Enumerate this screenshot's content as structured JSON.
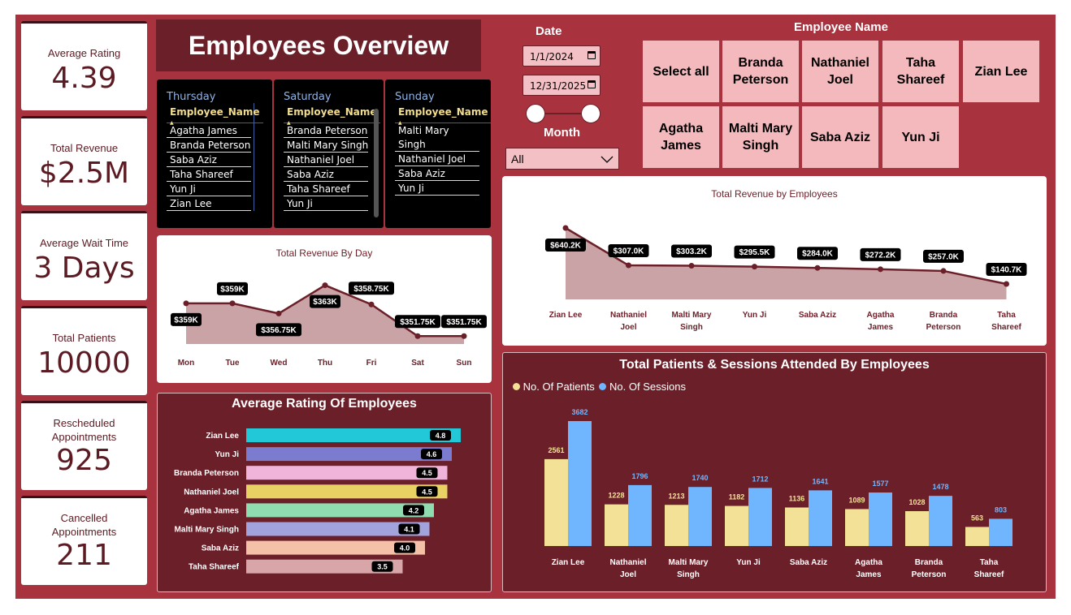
{
  "header": {
    "title": "Employees Overview"
  },
  "kpis": [
    {
      "label": "Average Rating",
      "value": "4.39"
    },
    {
      "label": "Total Revenue",
      "value": "$2.5M"
    },
    {
      "label": "Average Wait Time",
      "value": "3 Days"
    },
    {
      "label": "Total Patients",
      "value": "10000"
    },
    {
      "label": "Rescheduled Appointments",
      "value": "925"
    },
    {
      "label": "Cancelled Appointments",
      "value": "211"
    }
  ],
  "day_tables": {
    "column_header": "Employee_Name",
    "thursday": {
      "title": "Thursday",
      "rows": [
        "Agatha James",
        "Branda Peterson",
        "Saba Aziz",
        "Taha Shareef",
        "Yun Ji",
        "Zian Lee"
      ]
    },
    "saturday": {
      "title": "Saturday",
      "rows": [
        "Branda Peterson",
        "Malti Mary Singh",
        "Nathaniel Joel",
        "Saba Aziz",
        "Taha Shareef",
        "Yun Ji"
      ]
    },
    "sunday": {
      "title": "Sunday",
      "rows": [
        "Malti Mary",
        "Singh",
        "Nathaniel Joel",
        "Saba Aziz",
        "Yun Ji"
      ]
    }
  },
  "filters": {
    "date_label": "Date",
    "start_date": "1/1/2024",
    "end_date": "12/31/2025",
    "month_label": "Month",
    "month_value": "All",
    "employee_label": "Employee Name",
    "employee_tiles": [
      "Select all",
      "Branda Peterson",
      "Nathaniel Joel",
      "Taha Shareef",
      "Zian Lee",
      "Agatha James",
      "Malti Mary Singh",
      "Saba Aziz",
      "Yun Ji"
    ]
  },
  "colors": {
    "background": "#a8323d",
    "dark": "#6b1f28",
    "accent_line": "#6b1f28",
    "area_fill": "#c9a3a5",
    "patients": "#f2e196",
    "sessions": "#6fb6ff"
  },
  "chart_data": [
    {
      "type": "area",
      "title": "Total Revenue By Day",
      "categories": [
        "Mon",
        "Tue",
        "Wed",
        "Thu",
        "Fri",
        "Sat",
        "Sun"
      ],
      "values": [
        359,
        359,
        356.75,
        363,
        358.75,
        351.75,
        351.75
      ],
      "labels": [
        "$359K",
        "$359K",
        "$356.75K",
        "$363K",
        "$358.75K",
        "$351.75K",
        "$351.75K"
      ],
      "unit": "K"
    },
    {
      "type": "area",
      "title": "Total Revenue by Employees",
      "categories": [
        "Zian Lee",
        "Nathaniel Joel",
        "Malti Mary Singh",
        "Yun Ji",
        "Saba Aziz",
        "Agatha James",
        "Branda Peterson",
        "Taha Shareef"
      ],
      "values": [
        640.2,
        307.0,
        303.2,
        295.5,
        284.0,
        272.2,
        257.0,
        140.7
      ],
      "labels": [
        "$640.2K",
        "$307.0K",
        "$303.2K",
        "$295.5K",
        "$284.0K",
        "$272.2K",
        "$257.0K",
        "$140.7K"
      ],
      "unit": "K"
    },
    {
      "type": "bar",
      "orientation": "horizontal",
      "title": "Average Rating Of Employees",
      "categories": [
        "Zian Lee",
        "Yun Ji",
        "Branda Peterson",
        "Nathaniel Joel",
        "Agatha James",
        "Malti Mary Singh",
        "Saba Aziz",
        "Taha Shareef"
      ],
      "values": [
        4.8,
        4.6,
        4.5,
        4.5,
        4.2,
        4.1,
        4.0,
        3.5
      ],
      "labels": [
        "4.8",
        "4.6",
        "4.5",
        "4.5",
        "4.2",
        "4.1",
        "4.0",
        "3.5"
      ],
      "colors": [
        "#22c8d8",
        "#7b7bd0",
        "#f0b4da",
        "#e8d264",
        "#8fdcb0",
        "#a2a2dc",
        "#f4c0a8",
        "#d8a6a8"
      ]
    },
    {
      "type": "bar",
      "title": "Total Patients & Sessions Attended By Employees",
      "categories": [
        "Zian Lee",
        "Nathaniel Joel",
        "Malti Mary Singh",
        "Yun Ji",
        "Saba Aziz",
        "Agatha James",
        "Branda Peterson",
        "Taha Shareef"
      ],
      "series": [
        {
          "name": "No. Of Patients",
          "values": [
            2561,
            1228,
            1213,
            1182,
            1136,
            1089,
            1028,
            563
          ]
        },
        {
          "name": "No. Of Sessions",
          "values": [
            3682,
            1796,
            1740,
            1712,
            1641,
            1577,
            1478,
            803
          ]
        }
      ]
    }
  ]
}
